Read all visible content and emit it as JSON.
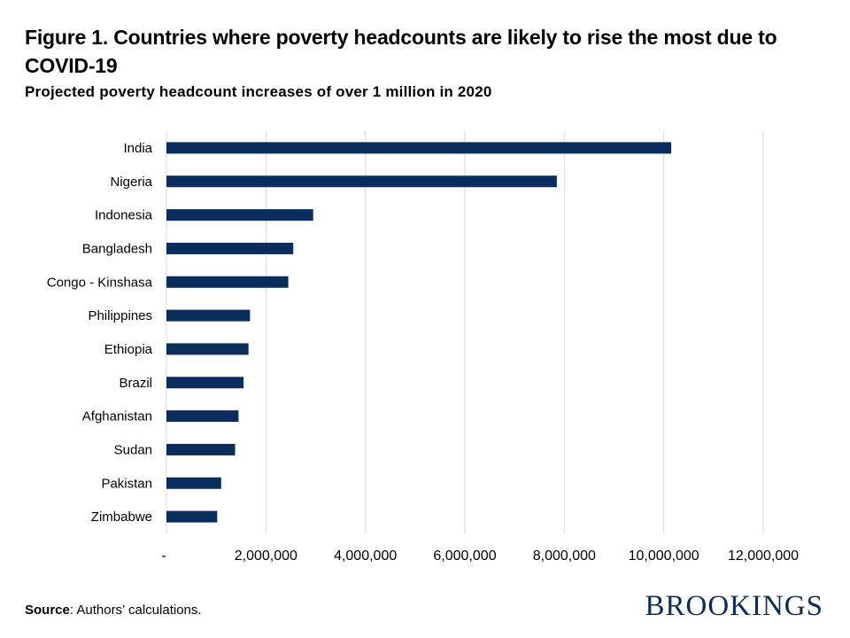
{
  "title": "Figure 1. Countries where poverty headcounts are likely to rise the most due to COVID-19",
  "subtitle": "Projected poverty headcount increases of over 1 million in 2020",
  "source_label": "Source",
  "source_text": ": Authors’ calculations.",
  "logo": "BROOKINGS",
  "colors": {
    "bar": "#0b2d5b",
    "grid": "#d9d9d9",
    "logo": "#0b2d5b"
  },
  "chart_data": {
    "type": "bar",
    "orientation": "horizontal",
    "title": "Figure 1. Countries where poverty headcounts are likely to rise the most due to COVID-19",
    "subtitle": "Projected poverty headcount increases of over 1 million in 2020",
    "categories": [
      "India",
      "Nigeria",
      "Indonesia",
      "Bangladesh",
      "Congo - Kinshasa",
      "Philippines",
      "Ethiopia",
      "Brazil",
      "Afghanistan",
      "Sudan",
      "Pakistan",
      "Zimbabwe"
    ],
    "values": [
      10150000,
      7850000,
      2950000,
      2550000,
      2450000,
      1680000,
      1650000,
      1550000,
      1450000,
      1380000,
      1100000,
      1020000
    ],
    "xlim": [
      0,
      12000000
    ],
    "xticks": [
      0,
      2000000,
      4000000,
      6000000,
      8000000,
      10000000,
      12000000
    ],
    "xtick_labels": [
      "-",
      "2,000,000",
      "4,000,000",
      "6,000,000",
      "8,000,000",
      "10,000,000",
      "12,000,000"
    ],
    "grid": true,
    "xlabel": "",
    "ylabel": ""
  }
}
